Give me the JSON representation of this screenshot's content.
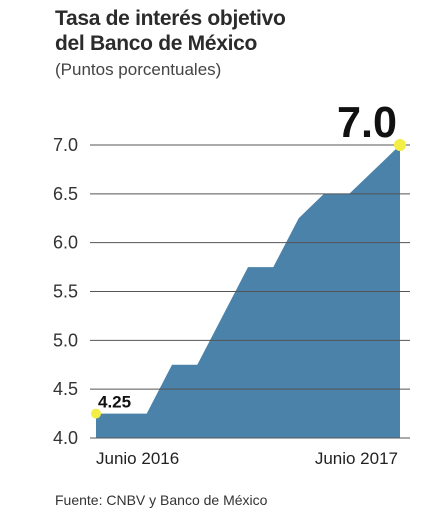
{
  "chart_data": {
    "type": "area",
    "title_lines": [
      "Tasa de interés objetivo",
      "del Banco de México"
    ],
    "subtitle": "(Puntos porcentuales)",
    "x_tick_labels": [
      "Junio 2016",
      "Junio 2017"
    ],
    "y_ticks": [
      "7.0",
      "6.5",
      "6.0",
      "5.5",
      "5.0",
      "4.5",
      "4.0"
    ],
    "ylim": [
      4.0,
      7.0
    ],
    "grid": true,
    "series": [
      {
        "x": [
          "2016-06",
          "2016-07",
          "2016-08",
          "2016-09",
          "2016-10",
          "2016-11",
          "2016-12",
          "2017-01",
          "2017-02",
          "2017-03",
          "2017-04",
          "2017-05",
          "2017-06"
        ],
        "values": [
          4.25,
          4.25,
          4.25,
          4.75,
          4.75,
          5.25,
          5.75,
          5.75,
          6.25,
          6.5,
          6.5,
          6.75,
          7.0
        ]
      }
    ],
    "annotations": [
      {
        "label": "4.25",
        "value": 4.25
      },
      {
        "label": "7.0",
        "value": 7.0
      }
    ],
    "colors": {
      "area": "#4a82aa",
      "marker": "#f2ee45",
      "grid": "#555555"
    }
  },
  "source": "Fuente: CNBV y Banco de México"
}
